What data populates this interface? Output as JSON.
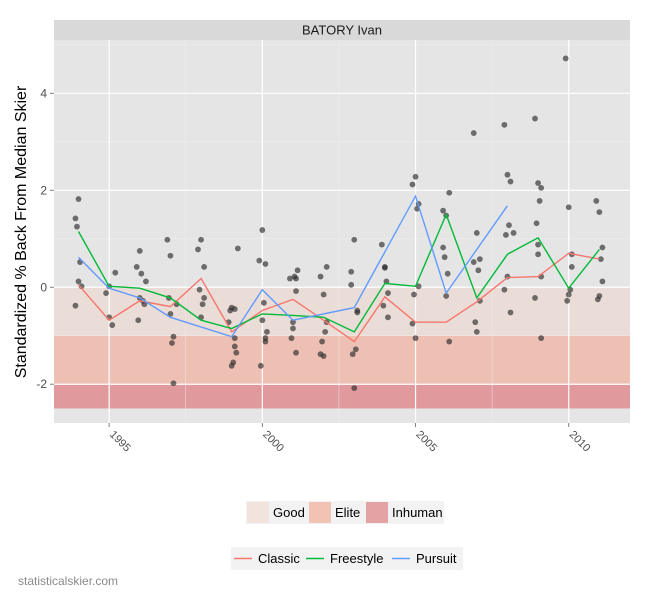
{
  "chart_data": {
    "type": "scatter",
    "title": "BATORY Ivan",
    "ylabel": "Standardized % Back From Median Skier",
    "xlabel": "",
    "xlim": [
      1993.2,
      2012.0
    ],
    "ylim": [
      -2.8,
      5.1
    ],
    "xticks": [
      1995,
      2000,
      2005,
      2010
    ],
    "yticks": [
      -2,
      0,
      2,
      4
    ],
    "grid": true,
    "bands": [
      {
        "name": "Good",
        "from": -1.0,
        "to": 0.0,
        "color": "#eadcd6"
      },
      {
        "name": "Elite",
        "from": -2.0,
        "to": -1.0,
        "color": "#eebfb3"
      },
      {
        "name": "Inhuman",
        "from": -2.5,
        "to": -2.0,
        "color": "#e09a9e"
      }
    ],
    "band_legend": [
      {
        "name": "Good",
        "color": "#f3e3dd"
      },
      {
        "name": "Elite",
        "color": "#f2c2b4"
      },
      {
        "name": "Inhuman",
        "color": "#e4a2a5"
      }
    ],
    "series": [
      {
        "name": "Classic",
        "color": "#f8766d",
        "x": [
          1994,
          1995,
          1996,
          1997,
          1998,
          1999,
          2000,
          2001,
          2002,
          2003,
          2004,
          2005,
          2006,
          2007,
          2008,
          2009,
          2010,
          2011
        ],
        "y": [
          0.05,
          -0.68,
          -0.28,
          -0.4,
          0.18,
          -0.92,
          -0.48,
          -0.25,
          -0.68,
          -1.12,
          -0.2,
          -0.72,
          -0.72,
          -0.3,
          0.2,
          0.22,
          0.7,
          0.58
        ]
      },
      {
        "name": "Freestyle",
        "color": "#00ba38",
        "x": [
          1994,
          1995,
          1996,
          1997,
          1998,
          1999,
          2000,
          2001,
          2002,
          2003,
          2004,
          2005,
          2006,
          2007,
          2008,
          2009,
          2010,
          2011
        ],
        "y": [
          1.15,
          0.02,
          -0.02,
          -0.22,
          -0.68,
          -0.85,
          -0.55,
          -0.58,
          -0.62,
          -0.92,
          0.08,
          0.02,
          1.5,
          -0.22,
          0.68,
          1.02,
          -0.02,
          0.78
        ]
      },
      {
        "name": "Pursuit",
        "color": "#619cff",
        "x": [
          1994,
          1995,
          1996,
          1997,
          1999,
          2000,
          2001,
          2003,
          2005,
          2006,
          2008
        ],
        "y": [
          0.62,
          -0.02,
          -0.22,
          -0.62,
          -1.02,
          -0.05,
          -0.68,
          -0.42,
          1.88,
          -0.12,
          1.68
        ]
      }
    ],
    "points": [
      [
        1993.9,
        1.42
      ],
      [
        1994.0,
        1.82
      ],
      [
        1993.95,
        1.25
      ],
      [
        1994.05,
        0.52
      ],
      [
        1993.9,
        -0.38
      ],
      [
        1994.1,
        0.02
      ],
      [
        1994.0,
        0.12
      ],
      [
        1994.9,
        -0.12
      ],
      [
        1995.0,
        -0.62
      ],
      [
        1995.2,
        0.3
      ],
      [
        1995.1,
        -0.78
      ],
      [
        1995.0,
        0.02
      ],
      [
        1996.0,
        0.75
      ],
      [
        1995.9,
        0.42
      ],
      [
        1996.1,
        -0.28
      ],
      [
        1996.2,
        0.12
      ],
      [
        1996.05,
        0.28
      ],
      [
        1995.95,
        -0.68
      ],
      [
        1996.15,
        -0.35
      ],
      [
        1996.0,
        -0.22
      ],
      [
        1996.9,
        0.98
      ],
      [
        1997.0,
        0.65
      ],
      [
        1997.1,
        -1.02
      ],
      [
        1997.05,
        -1.15
      ],
      [
        1997.1,
        -1.98
      ],
      [
        1996.95,
        -0.22
      ],
      [
        1997.0,
        -0.55
      ],
      [
        1997.2,
        -0.35
      ],
      [
        1997.9,
        0.78
      ],
      [
        1998.0,
        0.98
      ],
      [
        1998.1,
        0.42
      ],
      [
        1998.05,
        -0.35
      ],
      [
        1997.95,
        -0.05
      ],
      [
        1998.0,
        -0.62
      ],
      [
        1998.1,
        -0.22
      ],
      [
        1998.9,
        -0.72
      ],
      [
        1999.0,
        -0.42
      ],
      [
        1999.1,
        -1.22
      ],
      [
        1999.05,
        -1.55
      ],
      [
        1999.15,
        -1.35
      ],
      [
        1998.95,
        -0.48
      ],
      [
        1999.1,
        -0.45
      ],
      [
        1999.2,
        0.8
      ],
      [
        1999.0,
        -1.62
      ],
      [
        1999.1,
        -1.05
      ],
      [
        1999.9,
        0.55
      ],
      [
        2000.0,
        1.18
      ],
      [
        2000.1,
        0.48
      ],
      [
        2000.05,
        -0.32
      ],
      [
        1999.95,
        -1.62
      ],
      [
        2000.1,
        -1.12
      ],
      [
        2000.15,
        -0.92
      ],
      [
        2000.0,
        -0.68
      ],
      [
        2000.1,
        -1.05
      ],
      [
        2000.9,
        0.18
      ],
      [
        2001.0,
        -0.72
      ],
      [
        2001.1,
        -0.08
      ],
      [
        2001.05,
        0.22
      ],
      [
        2000.95,
        -1.05
      ],
      [
        2001.1,
        -1.35
      ],
      [
        2001.15,
        0.35
      ],
      [
        2001.0,
        -0.85
      ],
      [
        2001.1,
        0.18
      ],
      [
        2001.9,
        0.22
      ],
      [
        2002.0,
        -0.15
      ],
      [
        2002.1,
        0.42
      ],
      [
        2002.05,
        -0.92
      ],
      [
        2001.95,
        -1.12
      ],
      [
        2002.0,
        -1.42
      ],
      [
        2002.1,
        -0.72
      ],
      [
        2001.9,
        -1.38
      ],
      [
        2002.9,
        0.32
      ],
      [
        2003.0,
        0.98
      ],
      [
        2003.1,
        -0.52
      ],
      [
        2003.05,
        -1.28
      ],
      [
        2002.95,
        -1.38
      ],
      [
        2003.0,
        -2.08
      ],
      [
        2003.1,
        -0.48
      ],
      [
        2002.9,
        0.05
      ],
      [
        2003.9,
        0.88
      ],
      [
        2004.0,
        0.42
      ],
      [
        2004.1,
        -0.12
      ],
      [
        2004.05,
        0.12
      ],
      [
        2003.95,
        -0.38
      ],
      [
        2004.0,
        0.4
      ],
      [
        2004.1,
        -0.62
      ],
      [
        2004.9,
        2.12
      ],
      [
        2005.0,
        2.28
      ],
      [
        2005.1,
        1.72
      ],
      [
        2005.05,
        1.62
      ],
      [
        2004.95,
        -0.15
      ],
      [
        2005.0,
        -1.05
      ],
      [
        2005.1,
        0.02
      ],
      [
        2004.9,
        -0.75
      ],
      [
        2005.9,
        1.58
      ],
      [
        2006.0,
        1.48
      ],
      [
        2006.1,
        1.95
      ],
      [
        2006.05,
        0.28
      ],
      [
        2005.95,
        0.62
      ],
      [
        2006.0,
        -0.18
      ],
      [
        2006.1,
        -1.12
      ],
      [
        2005.9,
        0.82
      ],
      [
        2006.9,
        3.18
      ],
      [
        2007.0,
        1.12
      ],
      [
        2007.1,
        0.58
      ],
      [
        2007.05,
        0.35
      ],
      [
        2006.95,
        -0.72
      ],
      [
        2007.0,
        -0.92
      ],
      [
        2007.1,
        -0.28
      ],
      [
        2006.9,
        0.52
      ],
      [
        2007.9,
        3.35
      ],
      [
        2008.0,
        2.32
      ],
      [
        2008.1,
        2.18
      ],
      [
        2008.05,
        1.28
      ],
      [
        2007.95,
        1.08
      ],
      [
        2008.0,
        0.22
      ],
      [
        2008.1,
        -0.52
      ],
      [
        2007.9,
        -0.05
      ],
      [
        2008.2,
        1.12
      ],
      [
        2008.9,
        3.48
      ],
      [
        2009.0,
        2.15
      ],
      [
        2009.1,
        2.05
      ],
      [
        2009.05,
        1.78
      ],
      [
        2008.95,
        1.32
      ],
      [
        2009.0,
        0.68
      ],
      [
        2009.1,
        0.22
      ],
      [
        2008.9,
        -0.22
      ],
      [
        2009.1,
        -1.05
      ],
      [
        2009.0,
        0.88
      ],
      [
        2009.9,
        4.72
      ],
      [
        2010.0,
        1.65
      ],
      [
        2010.1,
        0.42
      ],
      [
        2010.05,
        -0.05
      ],
      [
        2009.95,
        -0.28
      ],
      [
        2010.0,
        -0.15
      ],
      [
        2010.1,
        0.68
      ],
      [
        2010.9,
        1.78
      ],
      [
        2011.0,
        1.55
      ],
      [
        2011.1,
        0.82
      ],
      [
        2011.05,
        0.58
      ],
      [
        2010.95,
        -0.25
      ],
      [
        2011.0,
        -0.18
      ],
      [
        2011.1,
        0.12
      ]
    ]
  },
  "strip_label": "BATORY Ivan",
  "credit": "statisticalskier.com"
}
